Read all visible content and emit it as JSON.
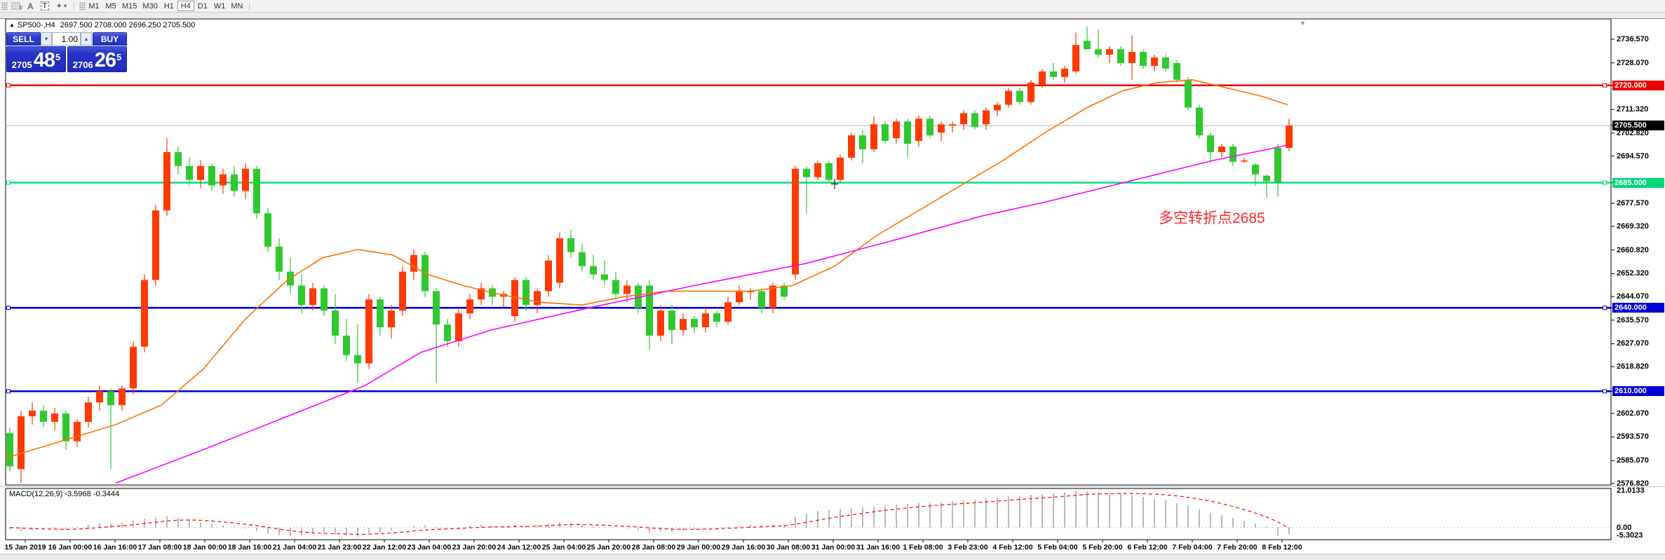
{
  "toolbar": {
    "tools": [
      {
        "id": "snap-grid",
        "glyph": "F"
      },
      {
        "id": "text-label",
        "glyph": "A"
      },
      {
        "id": "text-box",
        "glyph": "T"
      },
      {
        "id": "arrange",
        "glyph": "✦",
        "caret": "▾"
      }
    ],
    "timeframes": [
      "M1",
      "M5",
      "M15",
      "M30",
      "H1",
      "H4",
      "D1",
      "W1",
      "MN"
    ],
    "active_timeframe": "H4"
  },
  "chart_header": {
    "arrow": "▲",
    "title": "SP500-,H4",
    "ohlc": "2697.500 2708.000 2696.250 2705.500"
  },
  "trade_panel": {
    "sell_label": "SELL",
    "buy_label": "BUY",
    "volume": "1.00",
    "spinner_down": "▾",
    "spinner_up": "▴",
    "sell": {
      "prefix": "2705",
      "big": "48",
      "sup": "5"
    },
    "buy": {
      "prefix": "2706",
      "big": "26",
      "sup": "5"
    }
  },
  "annotation": {
    "text": "多空转折点2685"
  },
  "indicator_label": "MACD(12,26,9) -3.5968 -0.3444",
  "shift_marker": "▼",
  "axis": {
    "price_ticks": [
      {
        "label": "2736.570"
      },
      {
        "label": "2728.070"
      },
      {
        "label": "2720.000",
        "badge": "red"
      },
      {
        "label": "2711.320"
      },
      {
        "label": "2705.500",
        "badge": "black"
      },
      {
        "label": "2702.820"
      },
      {
        "label": "2694.570"
      },
      {
        "label": "2685.000",
        "badge": "green"
      },
      {
        "label": "2677.570"
      },
      {
        "label": "2669.320"
      },
      {
        "label": "2660.820"
      },
      {
        "label": "2652.320"
      },
      {
        "label": "2644.070"
      },
      {
        "label": "2640.000",
        "badge": "blue"
      },
      {
        "label": "2635.570"
      },
      {
        "label": "2627.070"
      },
      {
        "label": "2618.820"
      },
      {
        "label": "2610.000",
        "badge": "blue"
      },
      {
        "label": "2602.070"
      },
      {
        "label": "2593.570"
      },
      {
        "label": "2585.070"
      },
      {
        "label": "2576.820"
      }
    ],
    "macd_ticks": [
      "21.0133",
      "0.00",
      "-5.3023"
    ],
    "time_ticks": [
      "15 Jan 2019",
      "16 Jan 00:00",
      "16 Jan 16:00",
      "17 Jan 08:00",
      "18 Jan 00:00",
      "18 Jan 16:00",
      "21 Jan 04:00",
      "21 Jan 23:00",
      "22 Jan 12:00",
      "23 Jan 04:00",
      "23 Jan 20:00",
      "24 Jan 12:00",
      "25 Jan 04:00",
      "25 Jan 20:00",
      "28 Jan 08:00",
      "29 Jan 00:00",
      "29 Jan 16:00",
      "30 Jan 08:00",
      "31 Jan 00:00",
      "31 Jan 16:00",
      "1 Feb 08:00",
      "3 Feb 23:00",
      "4 Feb 12:00",
      "5 Feb 04:00",
      "5 Feb 20:00",
      "6 Feb 12:00",
      "7 Feb 04:00",
      "7 Feb 20:00",
      "8 Feb 12:00"
    ]
  },
  "chart_data": {
    "type": "candlestick",
    "symbol": "SP500-",
    "timeframe": "H4",
    "title": "SP500-,H4",
    "ohlc_current": {
      "open": 2697.5,
      "high": 2708.0,
      "low": 2696.25,
      "close": 2705.5
    },
    "ylim": [
      2576.82,
      2736.57
    ],
    "colors": {
      "up": "#ff3a00",
      "down": "#2fc92f",
      "ma_fast": "#ff7100",
      "ma_slow": "#ff00ff",
      "macd_hist": "#a8a8a8",
      "macd_signal": "#ff0000",
      "line_red": "#ee0000",
      "line_green": "#00df7c",
      "line_blue": "#0000dd",
      "current": "#b4b4b4"
    },
    "candles": [
      [
        2595,
        2597,
        2581,
        2583
      ],
      [
        2582,
        2603,
        2577,
        2601
      ],
      [
        2601,
        2606,
        2598,
        2603
      ],
      [
        2603,
        2605,
        2597,
        2599
      ],
      [
        2599,
        2604,
        2596,
        2602
      ],
      [
        2602,
        2603,
        2589,
        2592
      ],
      [
        2592,
        2600,
        2590,
        2599
      ],
      [
        2599,
        2608,
        2597,
        2606
      ],
      [
        2606,
        2612,
        2603,
        2610
      ],
      [
        2610,
        2611,
        2582,
        2605
      ],
      [
        2605,
        2612,
        2603,
        2611
      ],
      [
        2611,
        2628,
        2609,
        2626
      ],
      [
        2626,
        2652,
        2624,
        2650
      ],
      [
        2650,
        2677,
        2648,
        2675
      ],
      [
        2675,
        2701,
        2673,
        2696
      ],
      [
        2696,
        2698,
        2688,
        2691
      ],
      [
        2691,
        2694,
        2684,
        2686
      ],
      [
        2686,
        2693,
        2683,
        2691
      ],
      [
        2691,
        2692,
        2682,
        2684
      ],
      [
        2684,
        2690,
        2681,
        2688
      ],
      [
        2688,
        2691,
        2680,
        2682
      ],
      [
        2682,
        2692,
        2679,
        2690
      ],
      [
        2690,
        2691,
        2672,
        2674
      ],
      [
        2674,
        2676,
        2660,
        2662
      ],
      [
        2662,
        2665,
        2650,
        2653
      ],
      [
        2653,
        2658,
        2645,
        2648
      ],
      [
        2648,
        2652,
        2638,
        2641
      ],
      [
        2641,
        2649,
        2639,
        2647
      ],
      [
        2647,
        2648,
        2637,
        2639
      ],
      [
        2639,
        2645,
        2627,
        2630
      ],
      [
        2630,
        2636,
        2621,
        2623
      ],
      [
        2623,
        2634,
        2613,
        2620
      ],
      [
        2620,
        2645,
        2618,
        2643
      ],
      [
        2643,
        2644,
        2630,
        2633
      ],
      [
        2633,
        2641,
        2629,
        2639
      ],
      [
        2639,
        2655,
        2637,
        2653
      ],
      [
        2653,
        2661,
        2650,
        2659
      ],
      [
        2659,
        2660,
        2644,
        2646
      ],
      [
        2646,
        2647,
        2613,
        2634
      ],
      [
        2634,
        2636,
        2626,
        2628
      ],
      [
        2628,
        2640,
        2626,
        2638
      ],
      [
        2638,
        2645,
        2636,
        2643
      ],
      [
        2643,
        2649,
        2641,
        2647
      ],
      [
        2647,
        2648,
        2641,
        2644
      ],
      [
        2644,
        2646,
        2640,
        2645
      ],
      [
        2637,
        2651,
        2635,
        2650
      ],
      [
        2650,
        2651,
        2639,
        2641
      ],
      [
        2641,
        2647,
        2638,
        2646
      ],
      [
        2646,
        2659,
        2644,
        2657
      ],
      [
        2649,
        2667,
        2647,
        2665
      ],
      [
        2665,
        2668,
        2658,
        2660
      ],
      [
        2660,
        2663,
        2653,
        2655
      ],
      [
        2655,
        2659,
        2650,
        2652
      ],
      [
        2652,
        2657,
        2648,
        2650
      ],
      [
        2650,
        2653,
        2643,
        2645
      ],
      [
        2645,
        2650,
        2642,
        2648
      ],
      [
        2648,
        2649,
        2638,
        2640
      ],
      [
        2648,
        2650,
        2625,
        2630
      ],
      [
        2630,
        2641,
        2628,
        2639
      ],
      [
        2639,
        2641,
        2627,
        2632
      ],
      [
        2632,
        2638,
        2630,
        2636
      ],
      [
        2636,
        2637,
        2631,
        2633
      ],
      [
        2633,
        2640,
        2631,
        2638
      ],
      [
        2638,
        2639,
        2633,
        2635
      ],
      [
        2635,
        2644,
        2634,
        2642
      ],
      [
        2642,
        2648,
        2641,
        2646
      ],
      [
        2646,
        2647,
        2643,
        2646
      ],
      [
        2646,
        2647,
        2638,
        2640
      ],
      [
        2640,
        2649,
        2638,
        2648
      ],
      [
        2648,
        2649,
        2643,
        2644
      ],
      [
        2652,
        2691,
        2650,
        2690
      ],
      [
        2690,
        2691,
        2674,
        2687
      ],
      [
        2687,
        2693,
        2686,
        2692
      ],
      [
        2692,
        2693,
        2685,
        2686
      ],
      [
        2686,
        2695,
        2685,
        2694
      ],
      [
        2694,
        2703,
        2693,
        2702
      ],
      [
        2702,
        2704,
        2692,
        2697
      ],
      [
        2697,
        2709,
        2696,
        2706
      ],
      [
        2706,
        2707,
        2699,
        2700
      ],
      [
        2701,
        2708,
        2699,
        2707
      ],
      [
        2707,
        2708,
        2694,
        2699
      ],
      [
        2700,
        2709,
        2698,
        2708
      ],
      [
        2708,
        2709,
        2701,
        2702
      ],
      [
        2703,
        2707,
        2700,
        2706
      ],
      [
        2706,
        2707,
        2703,
        2706
      ],
      [
        2706,
        2711,
        2704,
        2710
      ],
      [
        2710,
        2711,
        2704,
        2705
      ],
      [
        2706,
        2712,
        2704,
        2711
      ],
      [
        2711,
        2714,
        2709,
        2713
      ],
      [
        2713,
        2719,
        2712,
        2718
      ],
      [
        2718,
        2719,
        2713,
        2714
      ],
      [
        2714,
        2722,
        2713,
        2721
      ],
      [
        2720,
        2726,
        2719,
        2725
      ],
      [
        2725,
        2728,
        2722,
        2723
      ],
      [
        2723,
        2727,
        2721,
        2726
      ],
      [
        2725,
        2739,
        2724,
        2734.5
      ],
      [
        2736,
        2741,
        2733,
        2733
      ],
      [
        2733,
        2740,
        2730,
        2731
      ],
      [
        2731,
        2734,
        2728,
        2733
      ],
      [
        2733,
        2734,
        2727,
        2728
      ],
      [
        2728,
        2738,
        2722,
        2732
      ],
      [
        2732,
        2733,
        2726,
        2727
      ],
      [
        2727,
        2731,
        2725,
        2730
      ],
      [
        2730,
        2731,
        2725,
        2726
      ],
      [
        2728,
        2729,
        2721,
        2722
      ],
      [
        2722,
        2723,
        2711,
        2712
      ],
      [
        2712,
        2713,
        2701,
        2702
      ],
      [
        2702,
        2703,
        2692,
        2696
      ],
      [
        2696,
        2699,
        2694,
        2698
      ],
      [
        2698,
        2699,
        2691,
        2692.5
      ],
      [
        2693,
        2694,
        2692,
        2693
      ],
      [
        2691.5,
        2692,
        2684,
        2688
      ],
      [
        2687.5,
        2688,
        2679.5,
        2685.5
      ],
      [
        2697.5,
        2699,
        2680,
        2685
      ],
      [
        2697.5,
        2708,
        2696.25,
        2705.5
      ]
    ],
    "hlines": [
      {
        "price": 2720,
        "label": "2720.000",
        "color": "#ee0000"
      },
      {
        "price": 2685,
        "label": "2685.000",
        "color": "#00df7c"
      },
      {
        "price": 2640,
        "label": "2640.000",
        "color": "#0000dd"
      },
      {
        "price": 2610,
        "label": "2610.000",
        "color": "#0000dd"
      }
    ],
    "current_price": {
      "value": 2705.5,
      "label": "2705.500"
    },
    "ma_fast_points": [
      [
        8,
        2586
      ],
      [
        100,
        2593
      ],
      [
        165,
        2598
      ],
      [
        230,
        2605
      ],
      [
        290,
        2618
      ],
      [
        350,
        2636
      ],
      [
        410,
        2650
      ],
      [
        460,
        2658
      ],
      [
        510,
        2661
      ],
      [
        560,
        2659
      ],
      [
        610,
        2652
      ],
      [
        660,
        2648
      ],
      [
        710,
        2645
      ],
      [
        770,
        2642
      ],
      [
        830,
        2641
      ],
      [
        890,
        2644
      ],
      [
        950,
        2646
      ],
      [
        1010,
        2646
      ],
      [
        1070,
        2646
      ],
      [
        1130,
        2648
      ],
      [
        1190,
        2655
      ],
      [
        1250,
        2666
      ],
      [
        1310,
        2675
      ],
      [
        1370,
        2684
      ],
      [
        1430,
        2693
      ],
      [
        1490,
        2703
      ],
      [
        1550,
        2712
      ],
      [
        1600,
        2718
      ],
      [
        1650,
        2721
      ],
      [
        1700,
        2722
      ],
      [
        1750,
        2719
      ],
      [
        1800,
        2716
      ],
      [
        1836,
        2713
      ]
    ],
    "ma_slow_points": [
      [
        165,
        2577
      ],
      [
        300,
        2590
      ],
      [
        420,
        2602
      ],
      [
        520,
        2612
      ],
      [
        600,
        2624
      ],
      [
        700,
        2632
      ],
      [
        840,
        2640
      ],
      [
        990,
        2648
      ],
      [
        1150,
        2656
      ],
      [
        1270,
        2664
      ],
      [
        1400,
        2673
      ],
      [
        1490,
        2678
      ],
      [
        1570,
        2683
      ],
      [
        1650,
        2688
      ],
      [
        1730,
        2693
      ],
      [
        1836,
        2698.5
      ]
    ],
    "macd": {
      "hist": [
        -1,
        -1.8,
        -1.4,
        -1,
        -0.6,
        -1.2,
        0.4,
        1.6,
        2.6,
        2.2,
        3,
        4,
        5,
        6,
        6.6,
        5.6,
        4.4,
        3.2,
        2.2,
        1.4,
        0.4,
        -0.6,
        -2,
        -3.4,
        -4.4,
        -5,
        -4.6,
        -3.6,
        -3,
        -4,
        -4.6,
        -5.2,
        -3.2,
        -2.6,
        -1.6,
        -0.2,
        0.8,
        1.4,
        0.2,
        -0.6,
        0.4,
        1,
        1.6,
        1.2,
        0.6,
        1.4,
        1,
        1.2,
        2,
        3,
        2.6,
        1.6,
        1,
        0.4,
        -0.2,
        -0.6,
        -1.6,
        -3,
        -2.2,
        -2.6,
        -1.6,
        -1.2,
        -0.6,
        -0.2,
        0.4,
        1,
        1.6,
        1.2,
        1.8,
        2.2,
        6,
        8,
        9.4,
        10,
        10.6,
        11,
        11.6,
        12,
        12.4,
        13,
        13.4,
        14,
        14,
        14.4,
        15,
        15.4,
        16,
        16.6,
        17,
        17.6,
        18,
        18.6,
        19,
        19.6,
        20,
        21.0133,
        20.6,
        20,
        19.4,
        19,
        18.4,
        17.4,
        16.4,
        15.4,
        14,
        12.4,
        10.4,
        8.4,
        7,
        5.4,
        3.8,
        2.2,
        0.6,
        -4.8,
        -3.5968
      ],
      "signal": [
        0,
        -0.3,
        -0.6,
        -0.8,
        -0.9,
        -1,
        -0.9,
        -0.5,
        0,
        0.5,
        1,
        1.6,
        2.3,
        3,
        3.8,
        4.2,
        4.3,
        4.1,
        3.7,
        3.2,
        2.6,
        1.9,
        1.1,
        0.1,
        -0.9,
        -1.8,
        -2.5,
        -3,
        -3.3,
        -3.5,
        -3.7,
        -3.9,
        -3.8,
        -3.5,
        -3.1,
        -2.6,
        -2,
        -1.4,
        -1,
        -0.8,
        -0.5,
        -0.2,
        0.1,
        0.3,
        0.4,
        0.5,
        0.6,
        0.8,
        1.1,
        1.5,
        1.7,
        1.7,
        1.5,
        1.3,
        1,
        0.7,
        0.3,
        -0.2,
        -0.6,
        -0.9,
        -1,
        -1,
        -0.9,
        -0.7,
        -0.4,
        -0.1,
        0.2,
        0.4,
        0.7,
        1,
        1.9,
        3,
        4.2,
        5.3,
        6.3,
        7.2,
        8.1,
        9,
        9.8,
        10.5,
        11.2,
        11.8,
        12.3,
        12.8,
        13.2,
        13.7,
        14.1,
        14.6,
        15,
        15.5,
        16,
        16.4,
        16.9,
        17.3,
        17.8,
        18.3,
        18.8,
        19.1,
        19.3,
        19.4,
        19.4,
        19.3,
        19,
        18.6,
        18,
        17.2,
        16.2,
        15,
        13.6,
        12,
        10.2,
        8.2,
        6,
        3.2,
        -0.3444
      ],
      "values_label": {
        "main": "-3.5968",
        "signal": "-0.3444"
      },
      "max_label": "21.0133",
      "zero_label": "0.00",
      "min_label": "-5.3023"
    }
  }
}
